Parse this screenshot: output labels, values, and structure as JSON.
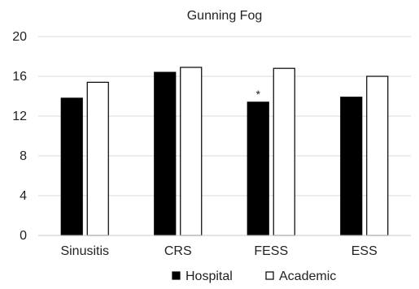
{
  "chart_data": {
    "type": "bar",
    "title": "Gunning Fog",
    "xlabel": "",
    "ylabel": "",
    "categories": [
      "Sinusitis",
      "CRS",
      "FESS",
      "ESS"
    ],
    "series": [
      {
        "name": "Hospital",
        "values": [
          13.8,
          16.4,
          13.4,
          13.9
        ],
        "color": "#000000",
        "fill": "solid"
      },
      {
        "name": "Academic",
        "values": [
          15.4,
          16.9,
          16.8,
          16.0
        ],
        "color": "#000000",
        "fill": "white"
      }
    ],
    "ylim": [
      0,
      20
    ],
    "yticks": [
      0,
      4,
      8,
      12,
      16,
      20
    ],
    "grid": true,
    "legend_position": "bottom",
    "annotations": [
      {
        "category": "FESS",
        "series": "Hospital",
        "text": "*"
      }
    ]
  }
}
